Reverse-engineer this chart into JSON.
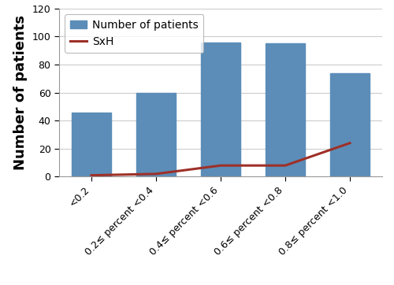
{
  "categories": [
    "<0.2",
    "0.2≤ percent <0.4",
    "0.4≤ percent <0.6",
    "0.6≤ percent <0.8",
    "0.8≤ percent <1.0"
  ],
  "bar_values": [
    46,
    60,
    96,
    95,
    74
  ],
  "line_values": [
    1,
    2,
    8,
    8,
    24
  ],
  "bar_color": "#5b8db8",
  "line_color": "#9e3028",
  "ylabel": "Number of patients",
  "ylim": [
    0,
    120
  ],
  "yticks": [
    0,
    20,
    40,
    60,
    80,
    100,
    120
  ],
  "legend_bar_label": "Number of patients",
  "legend_line_label": "SxH",
  "bar_width": 0.6,
  "line_width": 2.2,
  "tick_fontsize": 9,
  "ylabel_fontsize": 13,
  "legend_fontsize": 10,
  "background_color": "#ffffff"
}
